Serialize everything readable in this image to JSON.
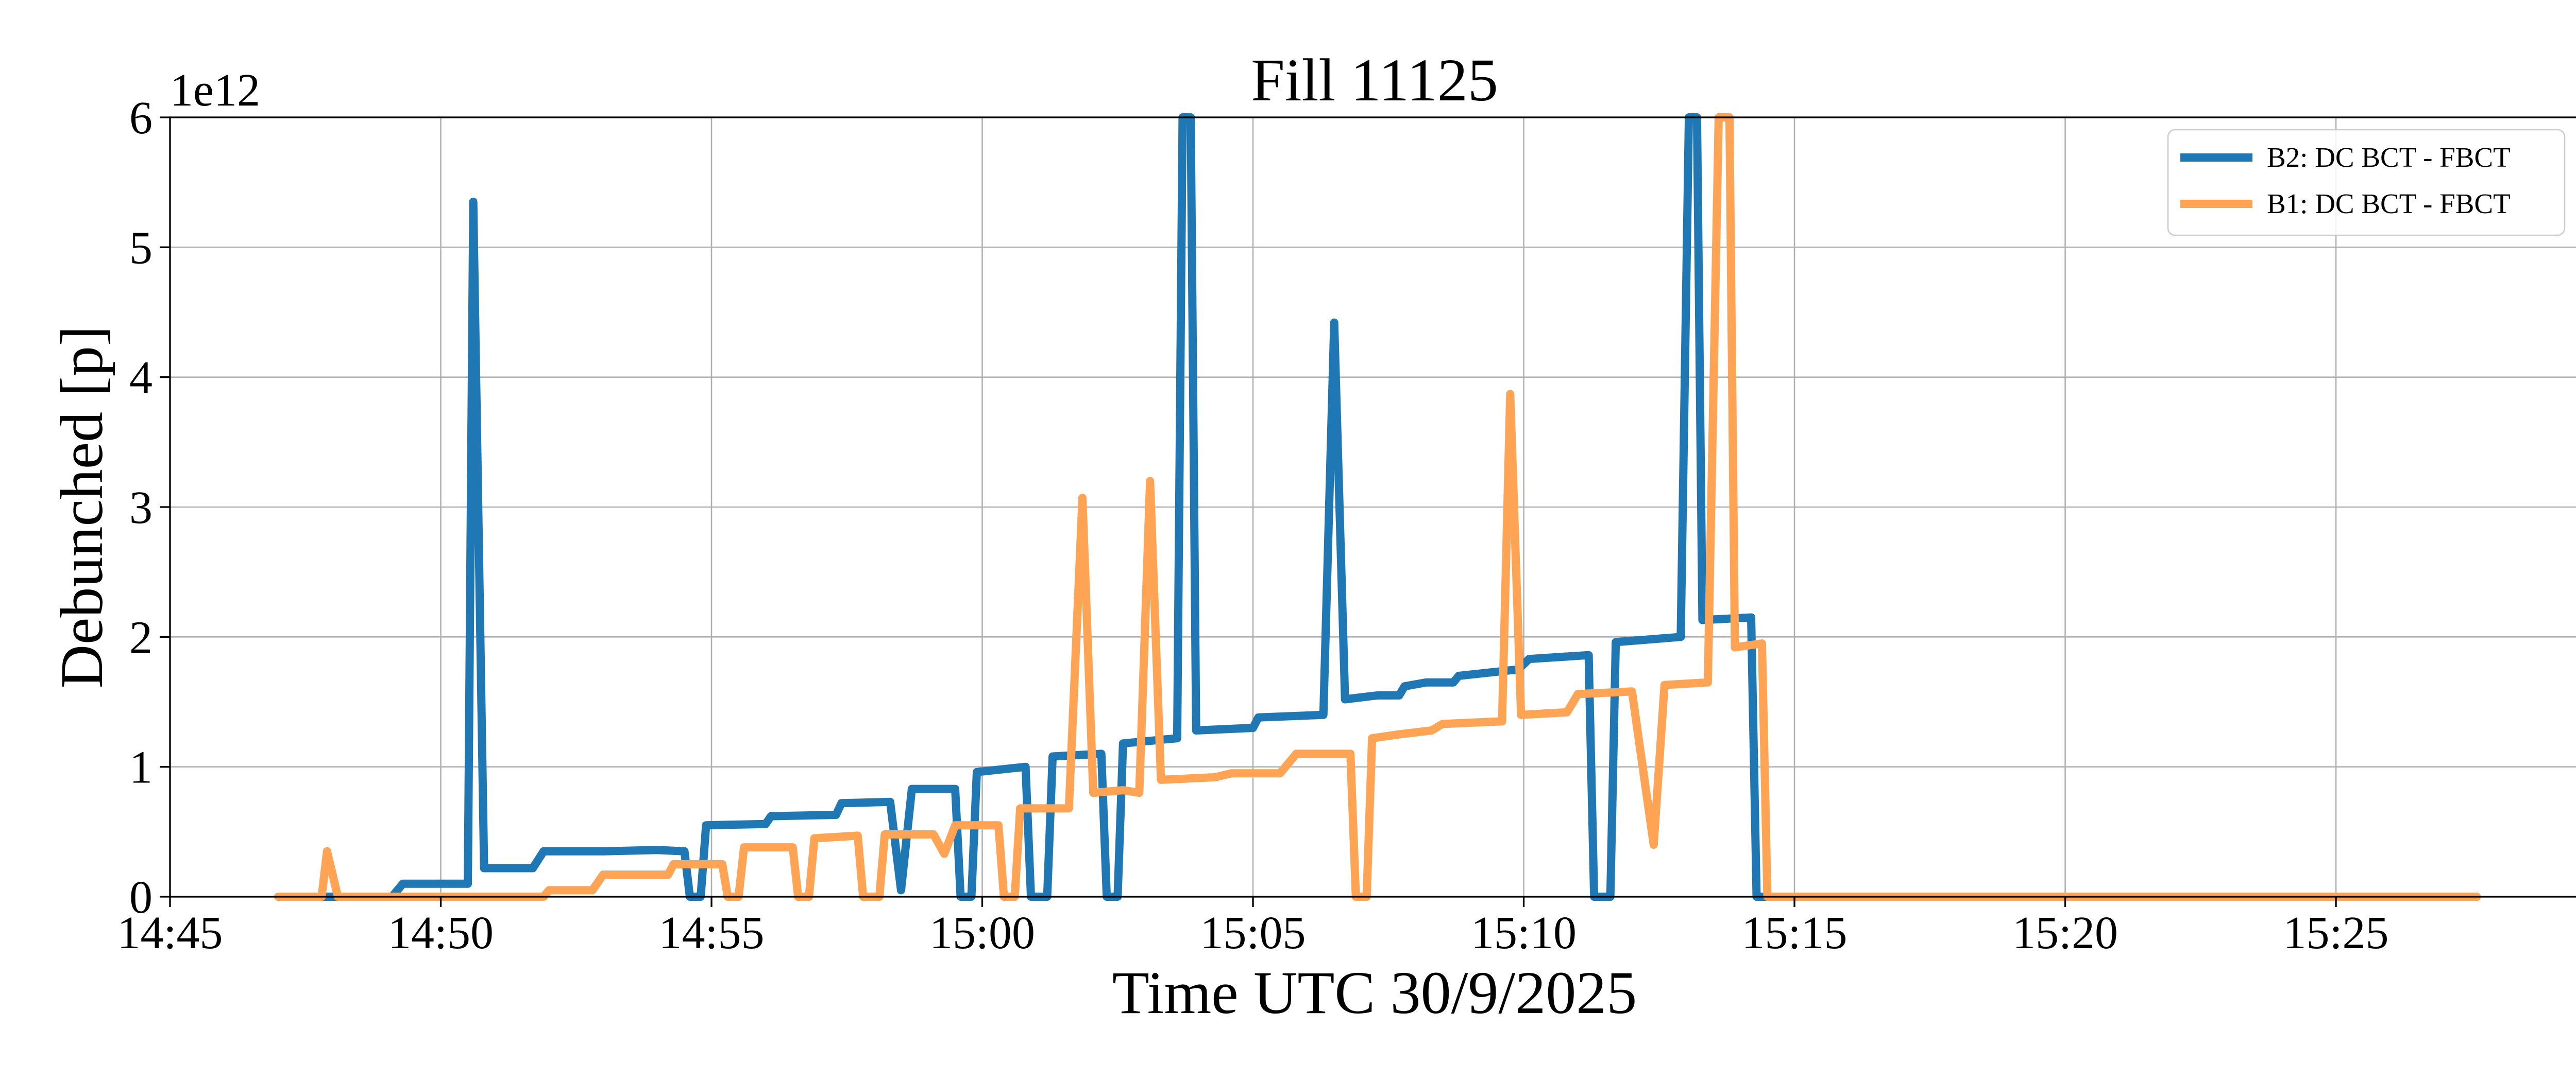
{
  "chart_data": {
    "type": "line",
    "title": "Fill 11125",
    "xlabel": "Time UTC 30/9/2025",
    "ylabel": "Debunched [p]",
    "y_offset_label": "1e12",
    "y_scale": 1000000000000,
    "xlim": [
      "14:45",
      "15:29.5"
    ],
    "ylim": [
      0,
      6
    ],
    "x_ticks": [
      "14:45",
      "14:50",
      "14:55",
      "15:00",
      "15:05",
      "15:10",
      "15:15",
      "15:20",
      "15:25"
    ],
    "y_ticks": [
      "0",
      "1",
      "2",
      "3",
      "4",
      "5",
      "6"
    ],
    "grid": true,
    "legend_position": "top-right",
    "series": [
      {
        "name": "B2: DC BCT - FBCT",
        "color": "#1f77b4",
        "points": [
          [
            "14:47",
            0
          ],
          [
            "14:48.5",
            0
          ],
          [
            "14:49.1",
            0
          ],
          [
            "14:49.3",
            0.1
          ],
          [
            "14:50.5",
            0.1
          ],
          [
            "14:50.6",
            5.35
          ],
          [
            "14:50.8",
            0.22
          ],
          [
            "14:51.7",
            0.22
          ],
          [
            "14:51.9",
            0.35
          ],
          [
            "14:53",
            0.35
          ],
          [
            "14:54",
            0.36
          ],
          [
            "14:54.5",
            0.35
          ],
          [
            "14:54.6",
            0
          ],
          [
            "14:54.8",
            0
          ],
          [
            "14:54.9",
            0.55
          ],
          [
            "14:56",
            0.56
          ],
          [
            "14:56.1",
            0.62
          ],
          [
            "14:57.3",
            0.63
          ],
          [
            "14:57.4",
            0.72
          ],
          [
            "14:58.3",
            0.73
          ],
          [
            "14:58.5",
            0.05
          ],
          [
            "14:58.7",
            0.83
          ],
          [
            "14:59.5",
            0.83
          ],
          [
            "14:59.6",
            0
          ],
          [
            "14:59.8",
            0
          ],
          [
            "14:59.9",
            0.96
          ],
          [
            "15:00.8",
            1.0
          ],
          [
            "15:00.9",
            0
          ],
          [
            "15:01.2",
            0
          ],
          [
            "15:01.3",
            1.08
          ],
          [
            "15:02.2",
            1.1
          ],
          [
            "15:02.3",
            0
          ],
          [
            "15:02.5",
            0
          ],
          [
            "15:02.6",
            1.18
          ],
          [
            "15:03.6",
            1.22
          ],
          [
            "15:03.7",
            6.0
          ],
          [
            "15:03.85",
            6.0
          ],
          [
            "15:03.95",
            1.28
          ],
          [
            "15:05",
            1.3
          ],
          [
            "15:05.1",
            1.38
          ],
          [
            "15:06.3",
            1.4
          ],
          [
            "15:06.5",
            4.42
          ],
          [
            "15:06.7",
            1.52
          ],
          [
            "15:07.3",
            1.55
          ],
          [
            "15:07.7",
            1.55
          ],
          [
            "15:07.8",
            1.62
          ],
          [
            "15:08.2",
            1.65
          ],
          [
            "15:08.7",
            1.65
          ],
          [
            "15:08.8",
            1.7
          ],
          [
            "15:09.9",
            1.75
          ],
          [
            "15:10.1",
            1.83
          ],
          [
            "15:11.2",
            1.86
          ],
          [
            "15:11.3",
            0
          ],
          [
            "15:11.6",
            0
          ],
          [
            "15:11.7",
            1.96
          ],
          [
            "15:12.9",
            2.0
          ],
          [
            "15:13.05",
            6.0
          ],
          [
            "15:13.2",
            6.0
          ],
          [
            "15:13.3",
            2.13
          ],
          [
            "15:14.2",
            2.15
          ],
          [
            "15:14.3",
            0
          ],
          [
            "15:27.6",
            0
          ]
        ]
      },
      {
        "name": "B1: DC BCT - FBCT",
        "color": "#ffa354",
        "points": [
          [
            "14:47",
            0
          ],
          [
            "14:47.8",
            0
          ],
          [
            "14:47.9",
            0.35
          ],
          [
            "14:48.1",
            0
          ],
          [
            "14:51.9",
            0
          ],
          [
            "14:52",
            0.05
          ],
          [
            "14:52.8",
            0.05
          ],
          [
            "14:53",
            0.17
          ],
          [
            "14:54.2",
            0.17
          ],
          [
            "14:54.3",
            0.25
          ],
          [
            "14:55.2",
            0.25
          ],
          [
            "14:55.3",
            0
          ],
          [
            "14:55.5",
            0
          ],
          [
            "14:55.6",
            0.38
          ],
          [
            "14:56.5",
            0.38
          ],
          [
            "14:56.6",
            0
          ],
          [
            "14:56.8",
            0
          ],
          [
            "14:56.9",
            0.45
          ],
          [
            "14:57.7",
            0.47
          ],
          [
            "14:57.8",
            0
          ],
          [
            "14:58.1",
            0
          ],
          [
            "14:58.2",
            0.48
          ],
          [
            "14:59.1",
            0.48
          ],
          [
            "14:59.3",
            0.33
          ],
          [
            "14:59.5",
            0.55
          ],
          [
            "15:00.3",
            0.55
          ],
          [
            "15:00.4",
            0
          ],
          [
            "15:00.6",
            0
          ],
          [
            "15:00.7",
            0.68
          ],
          [
            "15:01.6",
            0.68
          ],
          [
            "15:01.85",
            3.07
          ],
          [
            "15:02.05",
            0.8
          ],
          [
            "15:02.6",
            0.82
          ],
          [
            "15:02.9",
            0.8
          ],
          [
            "15:03.1",
            3.2
          ],
          [
            "15:03.3",
            0.9
          ],
          [
            "15:04.3",
            0.92
          ],
          [
            "15:04.6",
            0.95
          ],
          [
            "15:05.5",
            0.95
          ],
          [
            "15:05.8",
            1.1
          ],
          [
            "15:06.8",
            1.1
          ],
          [
            "15:06.9",
            0
          ],
          [
            "15:07.1",
            0
          ],
          [
            "15:07.2",
            1.22
          ],
          [
            "15:07.7",
            1.25
          ],
          [
            "15:08.3",
            1.28
          ],
          [
            "15:08.5",
            1.33
          ],
          [
            "15:09.6",
            1.35
          ],
          [
            "15:09.75",
            3.87
          ],
          [
            "15:09.95",
            1.4
          ],
          [
            "15:10.8",
            1.42
          ],
          [
            "15:11",
            1.56
          ],
          [
            "15:12",
            1.58
          ],
          [
            "15:12.4",
            0.4
          ],
          [
            "15:12.6",
            1.63
          ],
          [
            "15:13.4",
            1.65
          ],
          [
            "15:13.6",
            6.0
          ],
          [
            "15:13.8",
            6.0
          ],
          [
            "15:13.9",
            1.92
          ],
          [
            "15:14.4",
            1.95
          ],
          [
            "15:14.5",
            0
          ],
          [
            "15:27.6",
            0
          ]
        ]
      }
    ]
  }
}
